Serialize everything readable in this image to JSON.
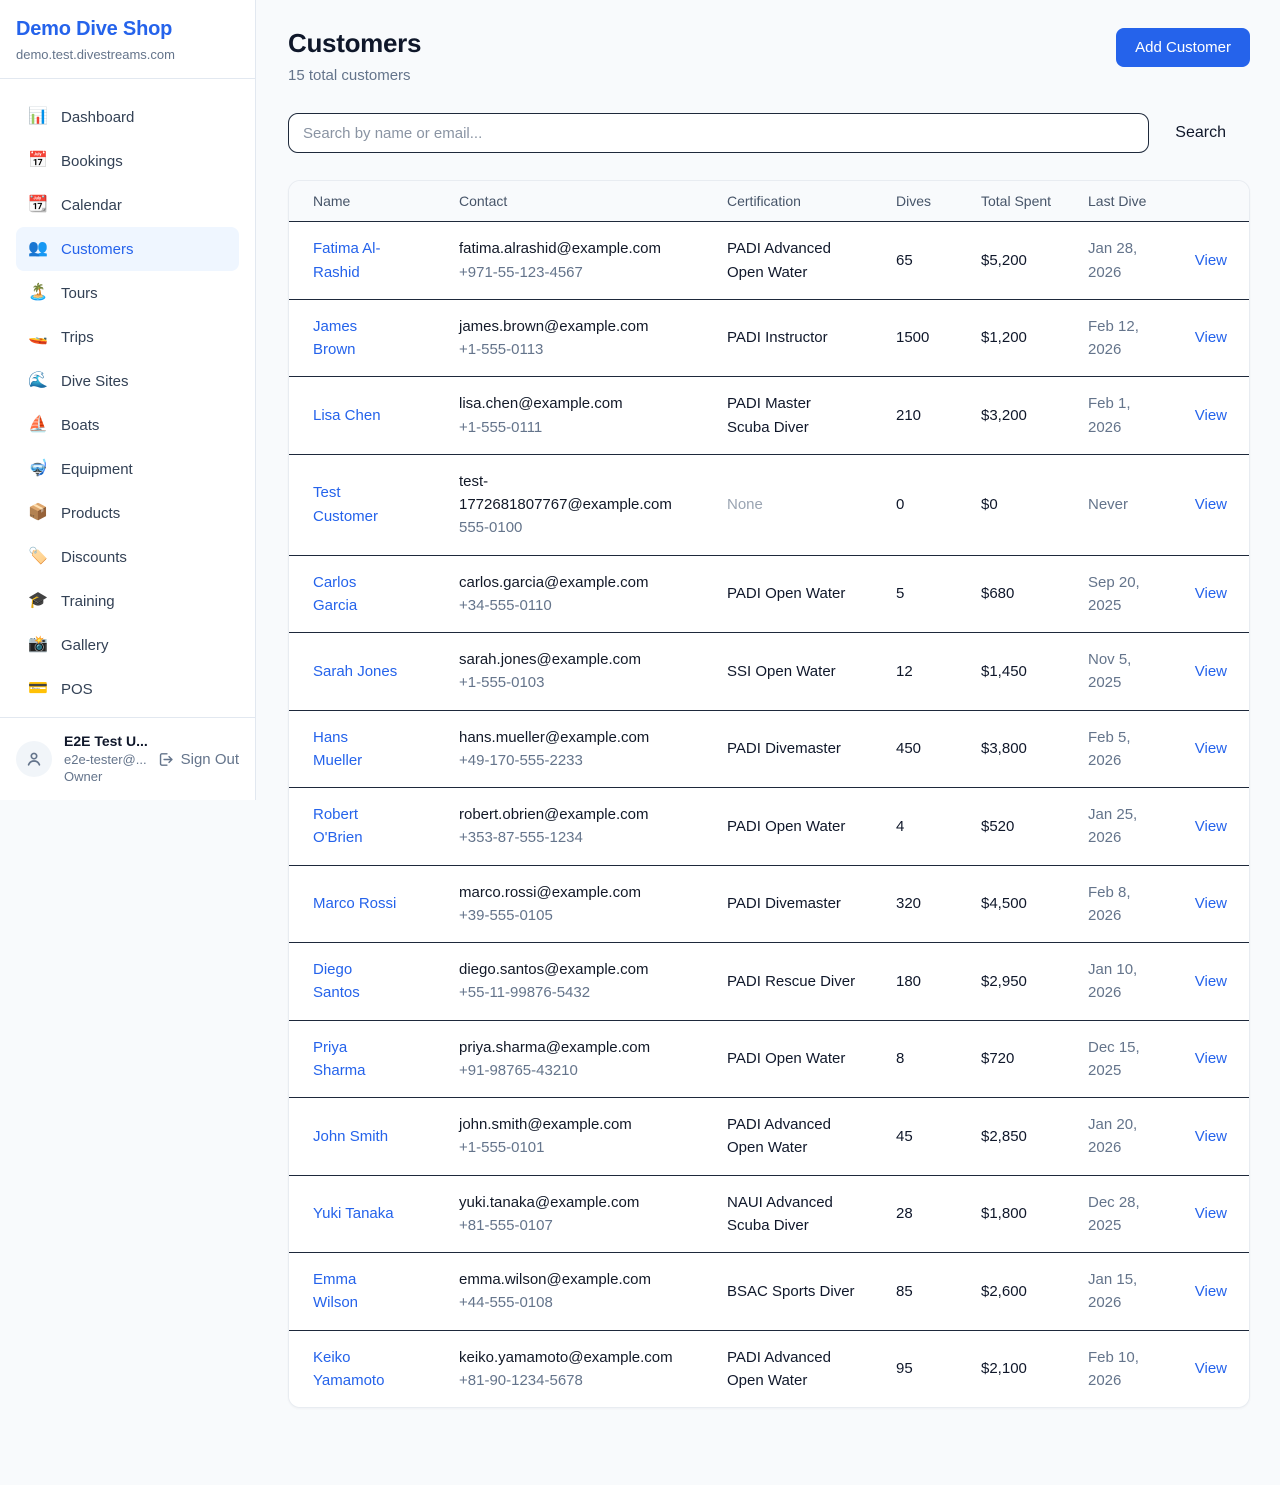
{
  "sidebar": {
    "brand": {
      "name": "Demo Dive Shop",
      "domain": "demo.test.divestreams.com"
    },
    "nav": [
      {
        "id": "dashboard",
        "icon": "📊",
        "label": "Dashboard",
        "active": false
      },
      {
        "id": "bookings",
        "icon": "📅",
        "label": "Bookings",
        "active": false
      },
      {
        "id": "calendar",
        "icon": "📆",
        "label": "Calendar",
        "active": false
      },
      {
        "id": "customers",
        "icon": "👥",
        "label": "Customers",
        "active": true
      },
      {
        "id": "tours",
        "icon": "🏝️",
        "label": "Tours",
        "active": false
      },
      {
        "id": "trips",
        "icon": "🚤",
        "label": "Trips",
        "active": false
      },
      {
        "id": "dive-sites",
        "icon": "🌊",
        "label": "Dive Sites",
        "active": false
      },
      {
        "id": "boats",
        "icon": "⛵",
        "label": "Boats",
        "active": false
      },
      {
        "id": "equipment",
        "icon": "🤿",
        "label": "Equipment",
        "active": false
      },
      {
        "id": "products",
        "icon": "📦",
        "label": "Products",
        "active": false
      },
      {
        "id": "discounts",
        "icon": "🏷️",
        "label": "Discounts",
        "active": false
      },
      {
        "id": "training",
        "icon": "🎓",
        "label": "Training",
        "active": false
      },
      {
        "id": "gallery",
        "icon": "📸",
        "label": "Gallery",
        "active": false
      },
      {
        "id": "pos",
        "icon": "💳",
        "label": "POS",
        "active": false
      }
    ],
    "user": {
      "name": "E2E Test U...",
      "email": "e2e-tester@...",
      "role": "Owner",
      "sign_out_label": "Sign Out"
    }
  },
  "header": {
    "title": "Customers",
    "subtitle": "15 total customers",
    "add_button_label": "Add Customer"
  },
  "search": {
    "placeholder": "Search by name or email...",
    "value": "",
    "button_label": "Search"
  },
  "table": {
    "columns": [
      "Name",
      "Contact",
      "Certification",
      "Dives",
      "Total Spent",
      "Last Dive",
      ""
    ],
    "view_label": "View",
    "rows": [
      {
        "name": "Fatima Al-Rashid",
        "email": "fatima.alrashid@example.com",
        "phone": "+971-55-123-4567",
        "certification": "PADI Advanced Open Water",
        "dives": "65",
        "total_spent": "$5,200",
        "last_dive": "Jan 28, 2026"
      },
      {
        "name": "James Brown",
        "email": "james.brown@example.com",
        "phone": "+1-555-0113",
        "certification": "PADI Instructor",
        "dives": "1500",
        "total_spent": "$1,200",
        "last_dive": "Feb 12, 2026"
      },
      {
        "name": "Lisa Chen",
        "email": "lisa.chen@example.com",
        "phone": "+1-555-0111",
        "certification": "PADI Master Scuba Diver",
        "dives": "210",
        "total_spent": "$3,200",
        "last_dive": "Feb 1, 2026"
      },
      {
        "name": "Test Customer",
        "email": "test-1772681807767@example.com",
        "phone": "555-0100",
        "certification": "None",
        "dives": "0",
        "total_spent": "$0",
        "last_dive": "Never"
      },
      {
        "name": "Carlos Garcia",
        "email": "carlos.garcia@example.com",
        "phone": "+34-555-0110",
        "certification": "PADI Open Water",
        "dives": "5",
        "total_spent": "$680",
        "last_dive": "Sep 20, 2025"
      },
      {
        "name": "Sarah Jones",
        "email": "sarah.jones@example.com",
        "phone": "+1-555-0103",
        "certification": "SSI Open Water",
        "dives": "12",
        "total_spent": "$1,450",
        "last_dive": "Nov 5, 2025"
      },
      {
        "name": "Hans Mueller",
        "email": "hans.mueller@example.com",
        "phone": "+49-170-555-2233",
        "certification": "PADI Divemaster",
        "dives": "450",
        "total_spent": "$3,800",
        "last_dive": "Feb 5, 2026"
      },
      {
        "name": "Robert O'Brien",
        "email": "robert.obrien@example.com",
        "phone": "+353-87-555-1234",
        "certification": "PADI Open Water",
        "dives": "4",
        "total_spent": "$520",
        "last_dive": "Jan 25, 2026"
      },
      {
        "name": "Marco Rossi",
        "email": "marco.rossi@example.com",
        "phone": "+39-555-0105",
        "certification": "PADI Divemaster",
        "dives": "320",
        "total_spent": "$4,500",
        "last_dive": "Feb 8, 2026"
      },
      {
        "name": "Diego Santos",
        "email": "diego.santos@example.com",
        "phone": "+55-11-99876-5432",
        "certification": "PADI Rescue Diver",
        "dives": "180",
        "total_spent": "$2,950",
        "last_dive": "Jan 10, 2026"
      },
      {
        "name": "Priya Sharma",
        "email": "priya.sharma@example.com",
        "phone": "+91-98765-43210",
        "certification": "PADI Open Water",
        "dives": "8",
        "total_spent": "$720",
        "last_dive": "Dec 15, 2025"
      },
      {
        "name": "John Smith",
        "email": "john.smith@example.com",
        "phone": "+1-555-0101",
        "certification": "PADI Advanced Open Water",
        "dives": "45",
        "total_spent": "$2,850",
        "last_dive": "Jan 20, 2026"
      },
      {
        "name": "Yuki Tanaka",
        "email": "yuki.tanaka@example.com",
        "phone": "+81-555-0107",
        "certification": "NAUI Advanced Scuba Diver",
        "dives": "28",
        "total_spent": "$1,800",
        "last_dive": "Dec 28, 2025"
      },
      {
        "name": "Emma Wilson",
        "email": "emma.wilson@example.com",
        "phone": "+44-555-0108",
        "certification": "BSAC Sports Diver",
        "dives": "85",
        "total_spent": "$2,600",
        "last_dive": "Jan 15, 2026"
      },
      {
        "name": "Keiko Yamamoto",
        "email": "keiko.yamamoto@example.com",
        "phone": "+81-90-1234-5678",
        "certification": "PADI Advanced Open Water",
        "dives": "95",
        "total_spent": "$2,100",
        "last_dive": "Feb 10, 2026"
      }
    ]
  },
  "colors": {
    "accent": "#2563eb",
    "accent_light_bg": "#eff6ff",
    "page_bg": "#f8fafc",
    "muted_text": "#64748b",
    "dark_text": "#0f172a",
    "row_border": "#1e293b",
    "light_border": "#e2e8f0"
  }
}
